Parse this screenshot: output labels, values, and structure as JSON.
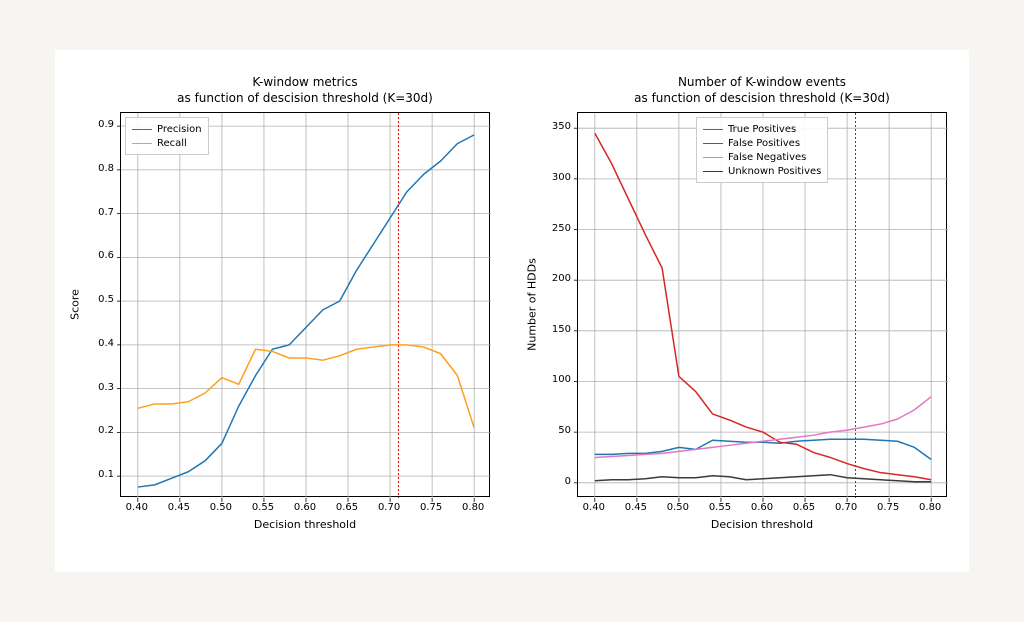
{
  "background_color": "#f7f5f1",
  "figure_background": "#ffffff",
  "left_chart": {
    "type": "line",
    "title_line1": "K-window metrics",
    "title_line2": "as function of descision threshold (K=30d)",
    "title_fontsize": 12,
    "xlabel": "Decision threshold",
    "ylabel": "Score",
    "label_fontsize": 11,
    "xlim": [
      0.38,
      0.82
    ],
    "ylim": [
      0.05,
      0.93
    ],
    "xticks": [
      0.4,
      0.45,
      0.5,
      0.55,
      0.6,
      0.65,
      0.7,
      0.75,
      0.8
    ],
    "yticks": [
      0.1,
      0.2,
      0.3,
      0.4,
      0.5,
      0.6,
      0.7,
      0.8,
      0.9
    ],
    "grid_color": "#b0b0b0",
    "grid_width": 0.8,
    "tick_fontsize": 10,
    "vline": {
      "x": 0.71,
      "color": "#ff0000",
      "dash": "2,2",
      "width": 1
    },
    "series": [
      {
        "name": "Precision",
        "color": "#1f77b4",
        "width": 1.5,
        "x": [
          0.4,
          0.42,
          0.44,
          0.46,
          0.48,
          0.5,
          0.52,
          0.54,
          0.56,
          0.58,
          0.6,
          0.62,
          0.64,
          0.66,
          0.68,
          0.7,
          0.72,
          0.74,
          0.76,
          0.78,
          0.8
        ],
        "y": [
          0.075,
          0.08,
          0.095,
          0.11,
          0.135,
          0.175,
          0.26,
          0.33,
          0.39,
          0.4,
          0.44,
          0.48,
          0.5,
          0.57,
          0.63,
          0.69,
          0.75,
          0.79,
          0.82,
          0.86,
          0.88
        ]
      },
      {
        "name": "Recall",
        "color": "#ff9e1b",
        "width": 1.5,
        "x": [
          0.4,
          0.42,
          0.44,
          0.46,
          0.48,
          0.5,
          0.52,
          0.54,
          0.56,
          0.58,
          0.6,
          0.62,
          0.64,
          0.66,
          0.68,
          0.7,
          0.72,
          0.74,
          0.76,
          0.78,
          0.8
        ],
        "y": [
          0.255,
          0.265,
          0.265,
          0.27,
          0.29,
          0.325,
          0.31,
          0.39,
          0.385,
          0.37,
          0.37,
          0.365,
          0.375,
          0.39,
          0.395,
          0.4,
          0.4,
          0.395,
          0.38,
          0.33,
          0.21
        ]
      }
    ],
    "legend_pos": "upper-left",
    "legend_fontsize": 10
  },
  "right_chart": {
    "type": "line",
    "title_line1": "Number of K-window events",
    "title_line2": "as function of descision threshold (K=30d)",
    "title_fontsize": 12,
    "xlabel": "Decision threshold",
    "ylabel": "Number of HDDs",
    "label_fontsize": 11,
    "xlim": [
      0.38,
      0.82
    ],
    "ylim": [
      -15,
      365
    ],
    "xticks": [
      0.4,
      0.45,
      0.5,
      0.55,
      0.6,
      0.65,
      0.7,
      0.75,
      0.8
    ],
    "yticks": [
      0,
      50,
      100,
      150,
      200,
      250,
      300,
      350
    ],
    "grid_color": "#b0b0b0",
    "grid_width": 0.8,
    "tick_fontsize": 10,
    "vline": {
      "x": 0.71,
      "color": "#ff0000",
      "dash": "2,2",
      "width": 1
    },
    "series": [
      {
        "name": "True Positives",
        "color": "#1f77b4",
        "width": 1.5,
        "x": [
          0.4,
          0.42,
          0.44,
          0.46,
          0.48,
          0.5,
          0.52,
          0.54,
          0.56,
          0.58,
          0.6,
          0.62,
          0.64,
          0.66,
          0.68,
          0.7,
          0.72,
          0.74,
          0.76,
          0.78,
          0.8
        ],
        "y": [
          28,
          28,
          29,
          29,
          31,
          35,
          33,
          42,
          41,
          40,
          40,
          39,
          41,
          42,
          43,
          43,
          43,
          42,
          41,
          35,
          23
        ]
      },
      {
        "name": "False Positives",
        "color": "#d62728",
        "width": 1.5,
        "x": [
          0.4,
          0.42,
          0.44,
          0.46,
          0.48,
          0.5,
          0.52,
          0.54,
          0.56,
          0.58,
          0.6,
          0.62,
          0.64,
          0.66,
          0.68,
          0.7,
          0.72,
          0.74,
          0.76,
          0.78,
          0.8
        ],
        "y": [
          345,
          315,
          280,
          245,
          212,
          105,
          90,
          68,
          62,
          55,
          50,
          40,
          38,
          30,
          25,
          19,
          14,
          10,
          8,
          6,
          3
        ]
      },
      {
        "name": "False Negatives",
        "color": "#e377c2",
        "width": 1.5,
        "x": [
          0.4,
          0.42,
          0.44,
          0.46,
          0.48,
          0.5,
          0.52,
          0.54,
          0.56,
          0.58,
          0.6,
          0.62,
          0.64,
          0.66,
          0.68,
          0.7,
          0.72,
          0.74,
          0.76,
          0.78,
          0.8
        ],
        "y": [
          25,
          26,
          27,
          28,
          29,
          31,
          33,
          35,
          37,
          39,
          41,
          43,
          45,
          47,
          50,
          52,
          55,
          58,
          63,
          72,
          85
        ]
      },
      {
        "name": "Unknown Positives",
        "color": "#3b3b3b",
        "width": 1.5,
        "x": [
          0.4,
          0.42,
          0.44,
          0.46,
          0.48,
          0.5,
          0.52,
          0.54,
          0.56,
          0.58,
          0.6,
          0.62,
          0.64,
          0.66,
          0.68,
          0.7,
          0.72,
          0.74,
          0.76,
          0.78,
          0.8
        ],
        "y": [
          2,
          3,
          3,
          4,
          6,
          5,
          5,
          7,
          6,
          3,
          4,
          5,
          6,
          7,
          8,
          5,
          4,
          3,
          2,
          1,
          1
        ]
      }
    ],
    "legend_pos": "upper-center",
    "legend_fontsize": 10
  }
}
